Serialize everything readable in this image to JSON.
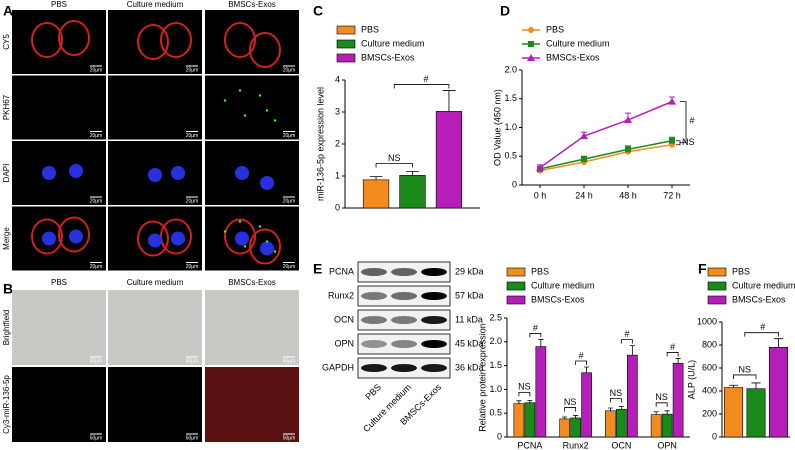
{
  "panel_labels": [
    "A",
    "B",
    "C",
    "D",
    "E",
    "F"
  ],
  "microscopy": {
    "columns": [
      "PBS",
      "Culture medium",
      "BMSCs-Exos"
    ],
    "rows_a": [
      "CY5",
      "PKH67",
      "DAPI",
      "Merge"
    ],
    "scale_a": "20μm",
    "rows_b": [
      "Brightfield",
      "Cy3-miR-136-5p"
    ],
    "scale_b": "50μm"
  },
  "blot": {
    "proteins": [
      "PCNA",
      "Runx2",
      "OCN",
      "OPN",
      "GAPDH"
    ],
    "sizes": [
      "29 kDa",
      "57 kDa",
      "11 kDa",
      "45 kDa",
      "36 kDa"
    ],
    "lanes": [
      "PBS",
      "Culture medium",
      "BMSCs-Exos"
    ]
  },
  "chart_data": [
    {
      "type": "bar",
      "ylabel": "miR-136-5p expression level",
      "ylim": [
        0,
        4
      ],
      "yticks": [
        0,
        1,
        2,
        3,
        4
      ],
      "annotations": [
        "NS",
        "#"
      ],
      "series": [
        {
          "name": "PBS",
          "color": "#f28c1e",
          "values": [
            0.88
          ],
          "errors": [
            0.1
          ]
        },
        {
          "name": "Culture medium",
          "color": "#1a8a1a",
          "values": [
            1.02
          ],
          "errors": [
            0.12
          ]
        },
        {
          "name": "BMSCs-Exos",
          "color": "#b61eb8",
          "values": [
            3.02
          ],
          "errors": [
            0.65
          ]
        }
      ]
    },
    {
      "type": "line",
      "ylabel": "OD Value (450 nm)",
      "categories": [
        "0 h",
        "24 h",
        "48 h",
        "72 h"
      ],
      "ylim": [
        0,
        2
      ],
      "yticks": [
        0,
        0.5,
        {
          "value": 1,
          "label": "1.0"
        },
        1.5,
        {
          "value": 2,
          "label": "2.0"
        }
      ],
      "annotations": [
        "#",
        "NS"
      ],
      "series": [
        {
          "name": "PBS",
          "color": "#f28c1e",
          "marker": "circle",
          "values": [
            0.25,
            0.4,
            0.58,
            0.7
          ],
          "errors": [
            0.04,
            0.05,
            0.06,
            0.08
          ]
        },
        {
          "name": "Culture medium",
          "color": "#1a8a1a",
          "marker": "square",
          "values": [
            0.28,
            0.45,
            0.62,
            0.77
          ],
          "errors": [
            0.04,
            0.05,
            0.06,
            0.06
          ]
        },
        {
          "name": "BMSCs-Exos",
          "color": "#b61eb8",
          "marker": "triangle",
          "values": [
            0.3,
            0.85,
            1.13,
            1.45
          ],
          "errors": [
            0.05,
            0.07,
            0.12,
            0.08
          ]
        }
      ]
    },
    {
      "type": "bar",
      "ylabel": "Relative protein expression",
      "categories": [
        "PCNA",
        "Runx2",
        "OCN",
        "OPN"
      ],
      "ylim": [
        0,
        2.5
      ],
      "yticks": [
        0,
        0.5,
        {
          "value": 1,
          "label": "1.0"
        },
        1.5,
        {
          "value": 2,
          "label": "2.0"
        },
        2.5
      ],
      "annotations": [
        "NS",
        "#"
      ],
      "series": [
        {
          "name": "PBS",
          "color": "#f28c1e",
          "values": [
            0.7,
            0.38,
            0.55,
            0.47
          ],
          "errors": [
            0.06,
            0.04,
            0.06,
            0.06
          ]
        },
        {
          "name": "Culture medium",
          "color": "#1a8a1a",
          "values": [
            0.72,
            0.4,
            0.58,
            0.48
          ],
          "errors": [
            0.05,
            0.05,
            0.06,
            0.07
          ]
        },
        {
          "name": "BMSCs-Exos",
          "color": "#b61eb8",
          "values": [
            1.9,
            1.35,
            1.72,
            1.55
          ],
          "errors": [
            0.15,
            0.12,
            0.2,
            0.1
          ]
        }
      ]
    },
    {
      "type": "bar",
      "ylabel": "ALP (U/L)",
      "ylim": [
        0,
        1000
      ],
      "yticks": [
        0,
        200,
        400,
        600,
        800,
        1000
      ],
      "annotations": [
        "NS",
        "#"
      ],
      "series": [
        {
          "name": "PBS",
          "color": "#f28c1e",
          "values": [
            430
          ],
          "errors": [
            20
          ]
        },
        {
          "name": "Culture medium",
          "color": "#1a8a1a",
          "values": [
            420
          ],
          "errors": [
            50
          ]
        },
        {
          "name": "BMSCs-Exos",
          "color": "#b61eb8",
          "values": [
            780
          ],
          "errors": [
            75
          ]
        }
      ]
    }
  ]
}
